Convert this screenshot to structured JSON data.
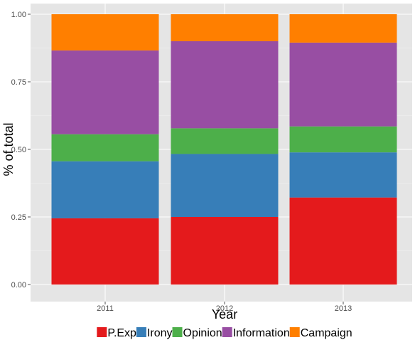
{
  "chart_data": {
    "type": "bar",
    "stacked": true,
    "categories": [
      "2011",
      "2012",
      "2013"
    ],
    "series": [
      {
        "name": "P.Exp",
        "color": "#e41a1c",
        "values": [
          0.245,
          0.25,
          0.322
        ]
      },
      {
        "name": "Irony",
        "color": "#377eb8",
        "values": [
          0.211,
          0.233,
          0.167
        ]
      },
      {
        "name": "Opinion",
        "color": "#4daf4a",
        "values": [
          0.1,
          0.095,
          0.096
        ]
      },
      {
        "name": "Information",
        "color": "#984ea3",
        "values": [
          0.31,
          0.322,
          0.31
        ]
      },
      {
        "name": "Campaign",
        "color": "#ff7f00",
        "values": [
          0.134,
          0.1,
          0.105
        ]
      }
    ],
    "xlabel": "Year",
    "ylabel": "% of total",
    "ylim": [
      0,
      1
    ],
    "yticks": [
      0,
      0.25,
      0.5,
      0.75,
      1
    ],
    "ytick_labels": [
      "0.00",
      "0.25",
      "0.50",
      "0.75",
      "1.00"
    ],
    "grid": true,
    "legend_position": "bottom",
    "panel_background": "#ebebeb"
  }
}
